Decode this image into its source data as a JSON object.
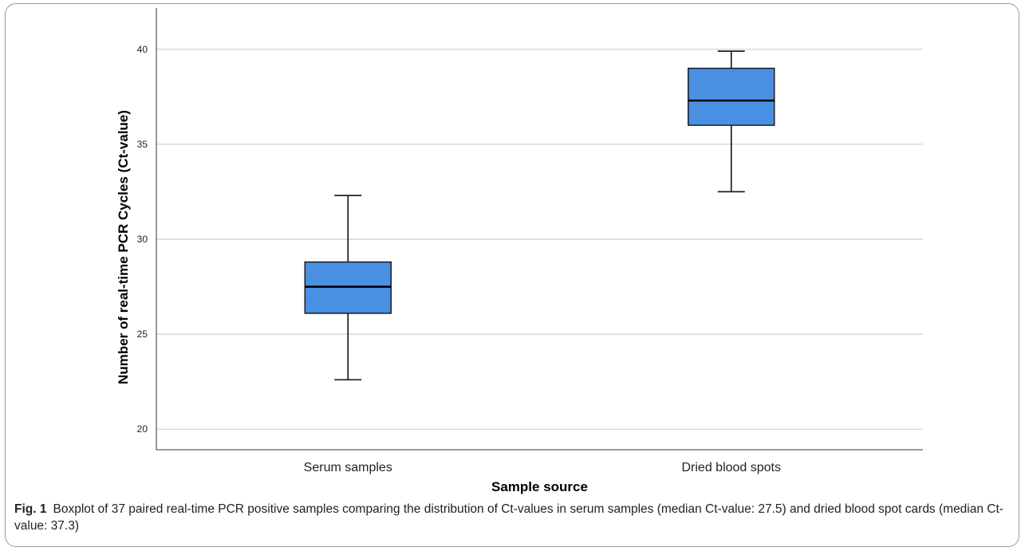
{
  "caption": {
    "label": "Fig. 1",
    "text": "Boxplot of 37 paired real-time PCR positive samples comparing the distribution of Ct-values in serum samples (median Ct-value: 27.5) and dried blood spot cards (median Ct-value: 37.3)"
  },
  "chart_data": {
    "type": "boxplot",
    "title": "",
    "xlabel": "Sample source",
    "ylabel": "Number of real-time PCR Cycles (Ct-value)",
    "ylim": [
      19,
      41
    ],
    "yticks": [
      20,
      25,
      30,
      35,
      40
    ],
    "grid": "horizontal",
    "legend": "none",
    "box_color": "#4a90e2",
    "categories": [
      "Serum samples",
      "Dried blood spots"
    ],
    "boxes": [
      {
        "category": "Serum samples",
        "min": 22.6,
        "q1": 26.1,
        "median": 27.5,
        "q3": 28.8,
        "max": 32.3
      },
      {
        "category": "Dried blood spots",
        "min": 32.5,
        "q1": 36.0,
        "median": 37.3,
        "q3": 39.0,
        "max": 39.9
      }
    ]
  }
}
